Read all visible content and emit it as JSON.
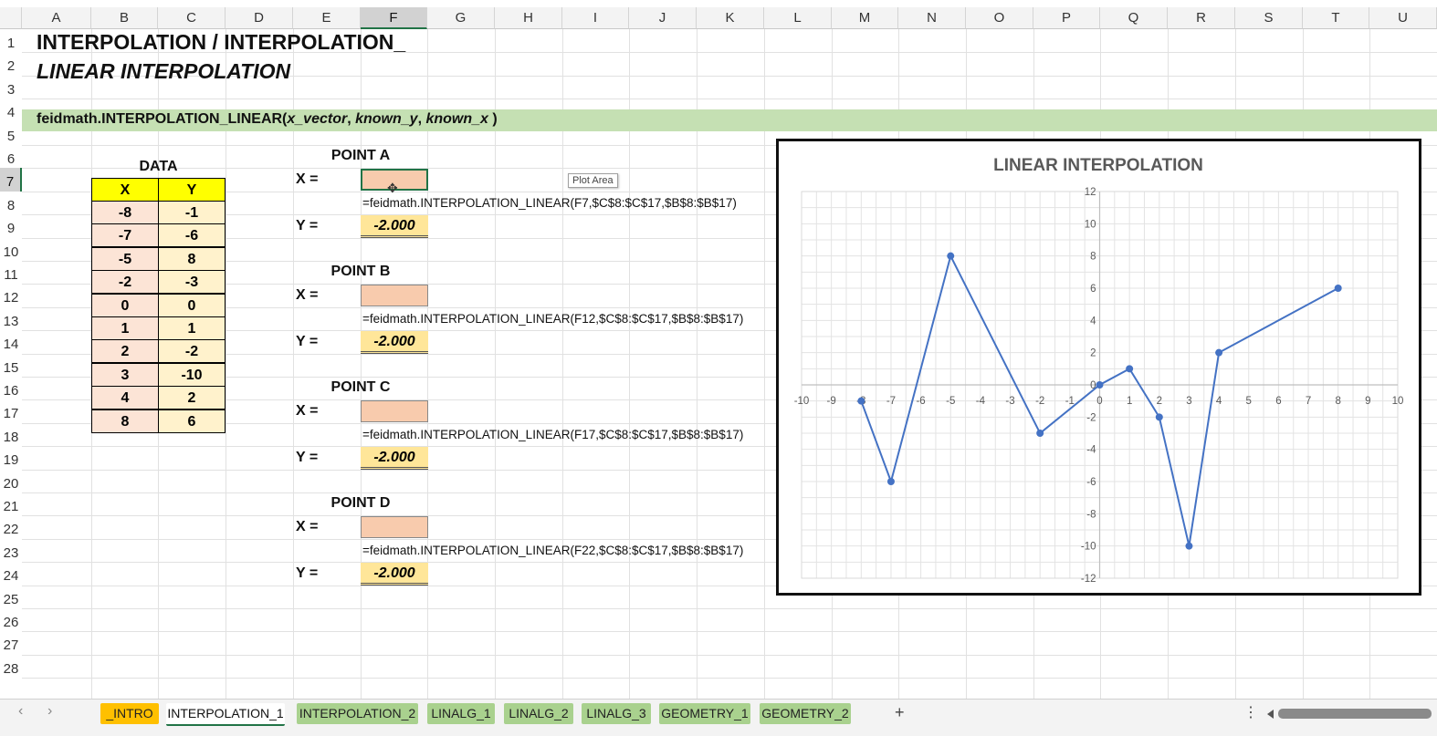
{
  "columns": [
    "A",
    "B",
    "C",
    "D",
    "E",
    "F",
    "G",
    "H",
    "I",
    "J",
    "K",
    "L",
    "M",
    "N",
    "O",
    "P",
    "Q",
    "R",
    "S",
    "T",
    "U"
  ],
  "rows": [
    "1",
    "2",
    "3",
    "4",
    "5",
    "6",
    "7",
    "8",
    "9",
    "10",
    "11",
    "12",
    "13",
    "14",
    "15",
    "16",
    "17",
    "18",
    "19",
    "20",
    "21",
    "22",
    "23",
    "24",
    "25",
    "26",
    "27",
    "28"
  ],
  "selected_column": "F",
  "selected_row": "7",
  "titles": {
    "line1": "INTERPOLATION / INTERPOLATION_",
    "line2": "LINEAR INTERPOLATION"
  },
  "function_bar": {
    "name": "feidmath.INTERPOLATION_LINEAR(",
    "arg1": "x_vector",
    "sep1": ", ",
    "arg2": "known_y",
    "sep2": ", ",
    "arg3": "known_x",
    "close": " )"
  },
  "data_table": {
    "title": "DATA",
    "header_x": "X",
    "header_y": "Y",
    "rows": [
      {
        "x": "-8",
        "y": "-1"
      },
      {
        "x": "-7",
        "y": "-6"
      },
      {
        "x": "-5",
        "y": "8"
      },
      {
        "x": "-2",
        "y": "-3"
      },
      {
        "x": "0",
        "y": "0"
      },
      {
        "x": "1",
        "y": "1"
      },
      {
        "x": "2",
        "y": "-2"
      },
      {
        "x": "3",
        "y": "-10"
      },
      {
        "x": "4",
        "y": "2"
      },
      {
        "x": "8",
        "y": "6"
      }
    ]
  },
  "points": [
    {
      "title": "POINT A",
      "x_label": "X =",
      "y_label": "Y =",
      "formula": "=feidmath.INTERPOLATION_LINEAR(F7,$C$8:$C$17,$B$8:$B$17)",
      "y_value": "-2.000"
    },
    {
      "title": "POINT B",
      "x_label": "X =",
      "y_label": "Y =",
      "formula": "=feidmath.INTERPOLATION_LINEAR(F12,$C$8:$C$17,$B$8:$B$17)",
      "y_value": "-2.000"
    },
    {
      "title": "POINT C",
      "x_label": "X =",
      "y_label": "Y =",
      "formula": "=feidmath.INTERPOLATION_LINEAR(F17,$C$8:$C$17,$B$8:$B$17)",
      "y_value": "-2.000"
    },
    {
      "title": "POINT D",
      "x_label": "X =",
      "y_label": "Y =",
      "formula": "=feidmath.INTERPOLATION_LINEAR(F22,$C$8:$C$17,$B$8:$B$17)",
      "y_value": "-2.000"
    }
  ],
  "tooltip": "Plot Area",
  "chart_data": {
    "type": "scatter",
    "title": "LINEAR INTERPOLATION",
    "xlim": [
      -10,
      10
    ],
    "ylim": [
      -12,
      12
    ],
    "x_ticks": [
      -10,
      -9,
      -8,
      -7,
      -6,
      -5,
      -4,
      -3,
      -2,
      -1,
      0,
      1,
      2,
      3,
      4,
      5,
      6,
      7,
      8,
      9,
      10
    ],
    "y_ticks": [
      -12,
      -10,
      -8,
      -6,
      -4,
      -2,
      0,
      2,
      4,
      6,
      8,
      10,
      12
    ],
    "grid": true,
    "series": [
      {
        "x": [
          -8,
          -7,
          -5,
          -2,
          0,
          1,
          2,
          3,
          4,
          8
        ],
        "y": [
          -1,
          -6,
          8,
          -3,
          0,
          1,
          -2,
          -10,
          2,
          6
        ],
        "color": "#4472c4",
        "markers": true,
        "lines": true
      }
    ]
  },
  "colors": {
    "accent_green": "#217346",
    "function_bar": "#c5e0b3",
    "header_yellow": "#ffff00",
    "x_cells": "#fce4d6",
    "y_cells": "#fff2cc",
    "input_cells": "#f8cbad",
    "output_cells": "#ffe699",
    "series": "#4472c4"
  },
  "tabs": [
    {
      "label": "_INTRO",
      "style": "orange"
    },
    {
      "label": "INTERPOLATION_1",
      "style": "active"
    },
    {
      "label": "INTERPOLATION_2",
      "style": "green"
    },
    {
      "label": "LINALG_1",
      "style": "green"
    },
    {
      "label": "LINALG_2",
      "style": "green"
    },
    {
      "label": "LINALG_3",
      "style": "green"
    },
    {
      "label": "GEOMETRY_1",
      "style": "green"
    },
    {
      "label": "GEOMETRY_2",
      "style": "green"
    }
  ],
  "tab_nav": {
    "prev": "‹",
    "next": "›",
    "add": "+",
    "more": "⋮"
  }
}
